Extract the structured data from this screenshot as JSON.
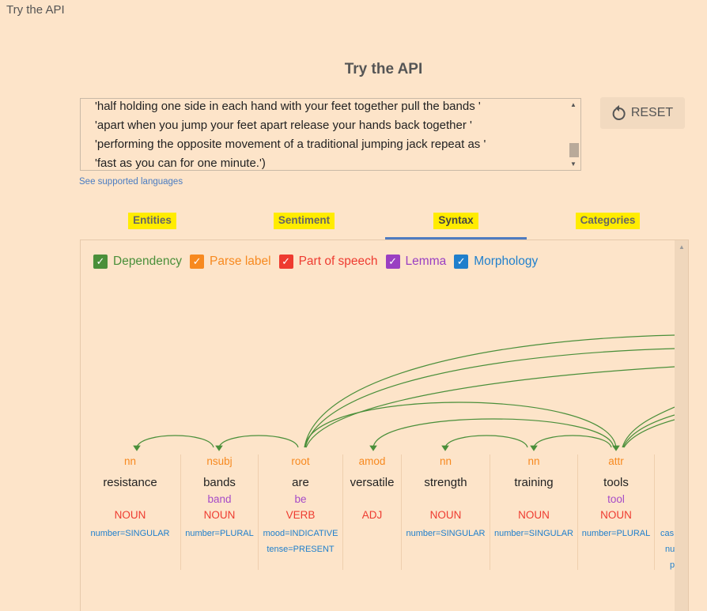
{
  "window_title": "Try the API",
  "heading": "Try the API",
  "input": {
    "lines": [
      "'half holding one side in each hand with your feet together pull the bands '",
      "'apart when you jump your feet apart release your hands back together '",
      "'performing the opposite movement of a traditional jumping jack repeat as '",
      "'fast as you can for one minute.')"
    ]
  },
  "reset_label": "RESET",
  "supported_languages_link": "See supported languages",
  "tabs": [
    {
      "label": "Entities"
    },
    {
      "label": "Sentiment"
    },
    {
      "label": "Syntax",
      "active": true
    },
    {
      "label": "Categories"
    }
  ],
  "options": [
    {
      "label": "Dependency",
      "checked": true,
      "color": "#4a8f3a"
    },
    {
      "label": "Parse label",
      "checked": true,
      "color": "#f7891f"
    },
    {
      "label": "Part of speech",
      "checked": true,
      "color": "#ee3b30"
    },
    {
      "label": "Lemma",
      "checked": true,
      "color": "#9a3fc2"
    },
    {
      "label": "Morphology",
      "checked": true,
      "color": "#1f7fcc"
    }
  ],
  "tokens": [
    {
      "label": "nn",
      "word": "resistance",
      "lemma": "",
      "pos": "NOUN",
      "morph": [
        "number=SINGULAR"
      ]
    },
    {
      "label": "nsubj",
      "word": "bands",
      "lemma": "band",
      "pos": "NOUN",
      "morph": [
        "number=PLURAL"
      ]
    },
    {
      "label": "root",
      "word": "are",
      "lemma": "be",
      "pos": "VERB",
      "morph": [
        "mood=INDICATIVE",
        "tense=PRESENT"
      ]
    },
    {
      "label": "amod",
      "word": "versatile",
      "lemma": "",
      "pos": "ADJ",
      "morph": []
    },
    {
      "label": "nn",
      "word": "strength",
      "lemma": "",
      "pos": "NOUN",
      "morph": [
        "number=SINGULAR"
      ]
    },
    {
      "label": "nn",
      "word": "training",
      "lemma": "",
      "pos": "NOUN",
      "morph": [
        "number=SINGULAR"
      ]
    },
    {
      "label": "attr",
      "word": "tools",
      "lemma": "tool",
      "pos": "NOUN",
      "morph": [
        "number=PLURAL"
      ]
    },
    {
      "label": "",
      "word": "",
      "lemma": "",
      "pos": "",
      "morph": [
        "cas",
        "nu",
        "p"
      ]
    }
  ],
  "arc_color": "#4a8f3a"
}
